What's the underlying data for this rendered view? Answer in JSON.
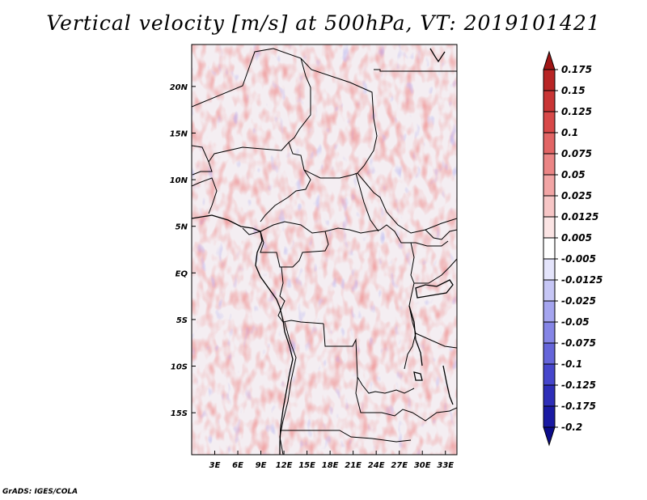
{
  "title": "Vertical velocity [m/s] at 500hPa, VT: 2019101421",
  "credit": "GrADS: IGES/COLA",
  "map": {
    "lat_labels": [
      "20N",
      "15N",
      "10N",
      "5N",
      "EQ",
      "5S",
      "10S",
      "15S"
    ],
    "lat_values": [
      20,
      15,
      10,
      5,
      0,
      -5,
      -10,
      -15
    ],
    "lon_labels": [
      "3E",
      "6E",
      "9E",
      "12E",
      "15E",
      "18E",
      "21E",
      "24E",
      "27E",
      "30E",
      "33E"
    ],
    "lon_values": [
      3,
      6,
      9,
      12,
      15,
      18,
      21,
      24,
      27,
      30,
      33
    ],
    "lon_range": [
      0,
      34.5
    ],
    "lat_range": [
      -19.5,
      24.5
    ]
  },
  "colorbar": {
    "levels": [
      "0.175",
      "0.15",
      "0.125",
      "0.1",
      "0.075",
      "0.05",
      "0.025",
      "0.0125",
      "0.005",
      "-0.005",
      "-0.0125",
      "-0.025",
      "-0.05",
      "-0.075",
      "-0.1",
      "-0.125",
      "-0.175",
      "-0.2"
    ],
    "colors": [
      "#a01616",
      "#b82525",
      "#c93535",
      "#d84949",
      "#e26565",
      "#eb8585",
      "#f2a5a5",
      "#f7c6c6",
      "#fbe4e4",
      "#ffffff",
      "#e4e4fb",
      "#c6c6f5",
      "#a5a5ef",
      "#8585e6",
      "#6565da",
      "#4646cc",
      "#2e2eb8",
      "#1a1aa3",
      "#0c0c8a"
    ]
  },
  "colors": {
    "positive": "#d64545",
    "negative": "#4c4ccc",
    "border": "#000000"
  }
}
